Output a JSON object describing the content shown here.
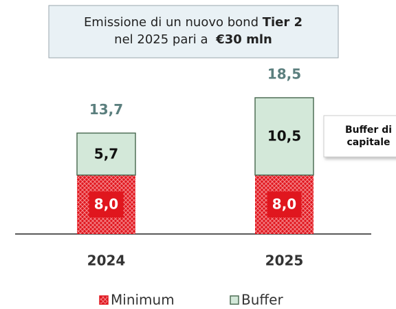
{
  "chart_data": {
    "type": "stacked_bar",
    "annotation": [
      "Emissione di un nuovo bond ",
      "Tier 2",
      "nel 2025 pari a ",
      "€30 mln"
    ],
    "side_note": [
      "Buffer di",
      "capitale"
    ],
    "categories": [
      "2024",
      "2025"
    ],
    "series": [
      {
        "name": "Minimum",
        "color": "#e0161e",
        "values": [
          8.0,
          8.0
        ],
        "value_labels": [
          "8,0",
          "8,0"
        ]
      },
      {
        "name": "Buffer",
        "color": "#d3e8d9",
        "values": [
          5.7,
          10.5
        ],
        "value_labels": [
          "5,7",
          "10,5"
        ]
      }
    ],
    "totals": [
      13.7,
      18.5
    ],
    "total_labels": [
      "13,7",
      "18,5"
    ]
  }
}
